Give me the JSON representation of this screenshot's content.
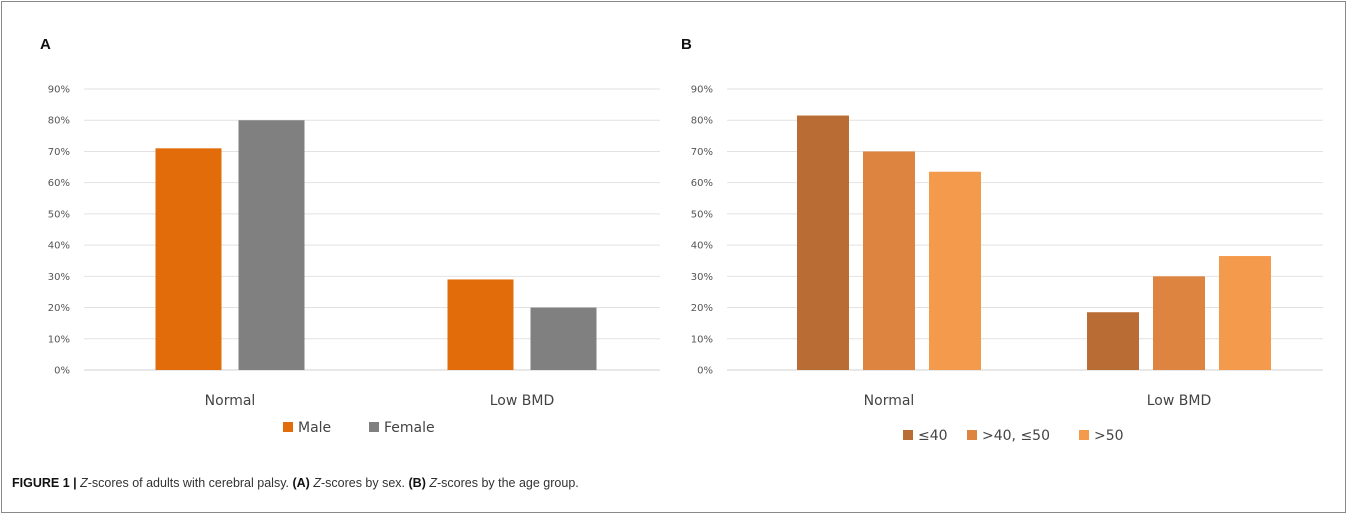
{
  "chart_data": [
    {
      "type": "bar",
      "panel": "A",
      "categories": [
        "Normal",
        "Low BMD"
      ],
      "series": [
        {
          "name": "Male",
          "values": [
            71,
            29
          ],
          "color": "#E36C0A"
        },
        {
          "name": "Female",
          "values": [
            80,
            20
          ],
          "color": "#808080"
        }
      ],
      "yticks": [
        "0%",
        "10%",
        "20%",
        "30%",
        "40%",
        "50%",
        "60%",
        "70%",
        "80%",
        "90%"
      ],
      "ylim": [
        0,
        90
      ],
      "grid": true,
      "legend": "bottom"
    },
    {
      "type": "bar",
      "panel": "B",
      "categories": [
        "Normal",
        "Low BMD"
      ],
      "series": [
        {
          "name": "≤40",
          "values": [
            81.5,
            18.5
          ],
          "color": "#B96C33"
        },
        {
          "name": ">40, ≤50",
          "values": [
            70,
            30
          ],
          "color": "#DD8540"
        },
        {
          "name": ">50",
          "values": [
            63.5,
            36.5
          ],
          "color": "#F49A4C"
        }
      ],
      "yticks": [
        "0%",
        "10%",
        "20%",
        "30%",
        "40%",
        "50%",
        "60%",
        "70%",
        "80%",
        "90%"
      ],
      "ylim": [
        0,
        90
      ],
      "grid": true,
      "legend": "bottom"
    }
  ],
  "caption": {
    "figure_label": "FIGURE 1 |",
    "z": "Z",
    "part1": "-scores of adults with cerebral palsy.",
    "a_label": "(A)",
    "part2": "-scores by sex.",
    "b_label": "(B)",
    "part3": "-scores by the age group."
  }
}
